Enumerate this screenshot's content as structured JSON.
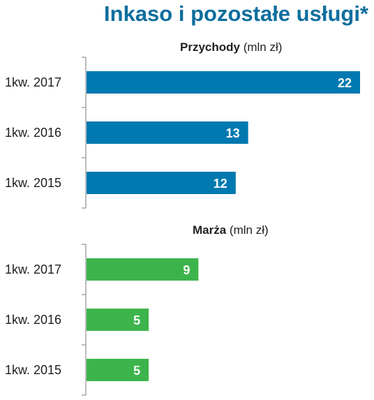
{
  "title": "Inkaso i pozostałe usługi*",
  "colors": {
    "title": "#0e6e9e",
    "revenue": "#0079b0",
    "margin": "#3cb44b",
    "axis": "#a6a6a6"
  },
  "chart_data": [
    {
      "type": "bar",
      "orientation": "horizontal",
      "title_bold": "Przychody",
      "title_rest": " (mln zł)",
      "categories": [
        "1kw. 2017",
        "1kw. 2016",
        "1kw. 2015"
      ],
      "values": [
        22,
        13,
        12
      ],
      "data_labels": [
        "22",
        "13",
        "12"
      ],
      "xlim": [
        0,
        22
      ],
      "grid": false,
      "color": "#0079b0"
    },
    {
      "type": "bar",
      "orientation": "horizontal",
      "title_bold": "Marża",
      "title_rest": " (mln zł)",
      "categories": [
        "1kw. 2017",
        "1kw. 2016",
        "1kw. 2015"
      ],
      "values": [
        9,
        5,
        5
      ],
      "data_labels": [
        "9",
        "5",
        "5"
      ],
      "xlim": [
        0,
        22
      ],
      "grid": false,
      "color": "#3cb44b"
    }
  ]
}
